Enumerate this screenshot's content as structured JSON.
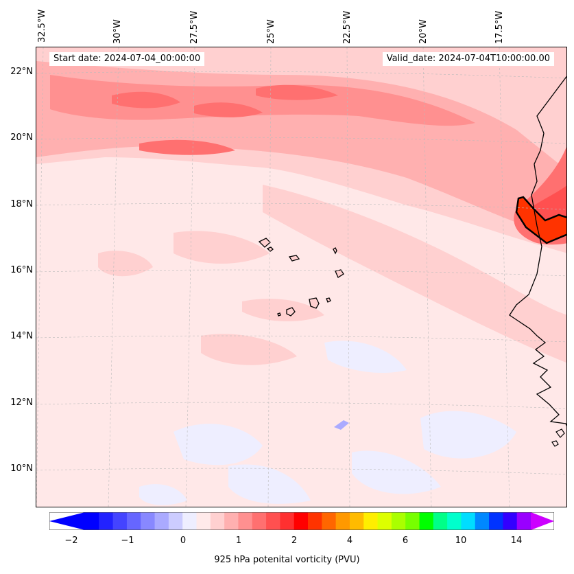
{
  "header": {
    "start_date": "Start date: 2024-07-04_00:00:00",
    "valid_date": "Valid_date: 2024-07-04T10:00:00.00"
  },
  "map": {
    "lon_labels": [
      "32.5°W",
      "30°W",
      "27.5°W",
      "25°W",
      "22.5°W",
      "20°W",
      "17.5°W"
    ],
    "lat_labels": [
      "22°N",
      "20°N",
      "18°N",
      "16°N",
      "14°N",
      "12°N",
      "10°N"
    ],
    "islands": "Cape Verde",
    "coastline": "West Africa"
  },
  "colorbar": {
    "ticks": [
      "−2",
      "−1",
      "0",
      "1",
      "2",
      "4",
      "6",
      "10",
      "14"
    ],
    "label": "925 hPa potenital vorticity (PVU)",
    "colors": [
      "#0000ff",
      "#2222ff",
      "#4444ff",
      "#6666ff",
      "#8888ff",
      "#aaaaff",
      "#ccccff",
      "#eeeeff",
      "#ffeaea",
      "#ffd0d0",
      "#ffb0b0",
      "#ff9090",
      "#ff7070",
      "#ff5050",
      "#ff3030",
      "#ff0000",
      "#ff3300",
      "#ff6600",
      "#ff9900",
      "#ffbb00",
      "#ffee00",
      "#ddff00",
      "#aaff00",
      "#77ff00",
      "#00ff00",
      "#00ff88",
      "#00ffcc",
      "#00ddff",
      "#0088ff",
      "#0033ff",
      "#3300ff",
      "#9900ff"
    ],
    "under_color": "#0000ff",
    "over_color": "#cc00ff"
  }
}
